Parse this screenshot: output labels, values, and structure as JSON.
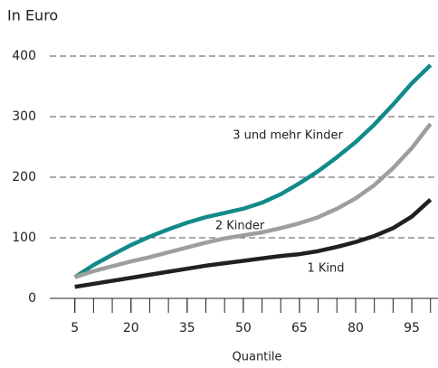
{
  "chart_data": {
    "type": "line",
    "title": "In Euro",
    "x_label": "Quantile",
    "x": [
      5,
      10,
      15,
      20,
      25,
      30,
      35,
      40,
      45,
      50,
      55,
      60,
      65,
      70,
      75,
      80,
      85,
      90,
      95,
      100
    ],
    "xlim": [
      0,
      102
    ],
    "xticks": [
      5,
      20,
      35,
      50,
      65,
      80,
      95
    ],
    "ylim": [
      0,
      400
    ],
    "yticks": [
      0,
      100,
      200,
      300,
      400
    ],
    "grid": true,
    "series": [
      {
        "name": "3 und mehr Kinder",
        "color": "#138a8a",
        "values": [
          35,
          55,
          72,
          88,
          102,
          114,
          125,
          134,
          141,
          148,
          158,
          172,
          190,
          210,
          233,
          258,
          287,
          320,
          355,
          385
        ]
      },
      {
        "name": "2 Kinder",
        "color": "#9e9e9e",
        "values": [
          35,
          45,
          53,
          61,
          68,
          76,
          84,
          92,
          99,
          104,
          109,
          116,
          124,
          134,
          148,
          165,
          187,
          215,
          248,
          288
        ]
      },
      {
        "name": "1 Kind",
        "color": "#231f20",
        "values": [
          19,
          24,
          29,
          34,
          39,
          44,
          49,
          54,
          58,
          62,
          66,
          70,
          73,
          78,
          85,
          93,
          103,
          116,
          135,
          163
        ]
      }
    ]
  }
}
